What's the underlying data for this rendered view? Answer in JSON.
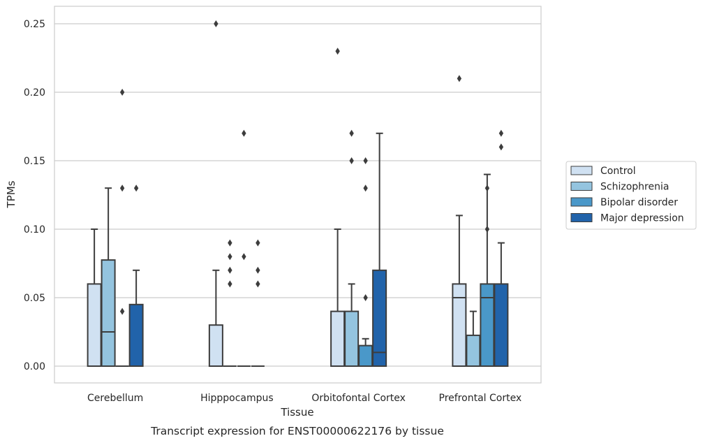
{
  "chart_data": {
    "type": "boxplot",
    "xlabel": "Tissue",
    "ylabel": "TPMs",
    "caption": "Transcript expression for ENST00000622176 by tissue",
    "ylim": [
      -0.012,
      0.263
    ],
    "yticks": [
      {
        "value": 0.0,
        "label": "0.00"
      },
      {
        "value": 0.05,
        "label": "0.05"
      },
      {
        "value": 0.1,
        "label": "0.10"
      },
      {
        "value": 0.15,
        "label": "0.15"
      },
      {
        "value": 0.2,
        "label": "0.20"
      },
      {
        "value": 0.25,
        "label": "0.25"
      }
    ],
    "grid": "horizontal",
    "legend_position": "right",
    "categories": [
      "Cerebellum",
      "Hipppocampus",
      "Orbitofontal Cortex",
      "Prefrontal Cortex"
    ],
    "series": [
      {
        "name": "Control",
        "color": "#d0e1f2",
        "boxes": [
          {
            "q1": 0.0,
            "median": 0.0,
            "q3": 0.06,
            "whisker_low": 0.0,
            "whisker_high": 0.1,
            "outliers": []
          },
          {
            "q1": 0.0,
            "median": 0.0,
            "q3": 0.03,
            "whisker_low": 0.0,
            "whisker_high": 0.07,
            "outliers": [
              0.25
            ]
          },
          {
            "q1": 0.0,
            "median": 0.0,
            "q3": 0.04,
            "whisker_low": 0.0,
            "whisker_high": 0.1,
            "outliers": [
              0.23
            ]
          },
          {
            "q1": 0.0,
            "median": 0.05,
            "q3": 0.06,
            "whisker_low": 0.0,
            "whisker_high": 0.11,
            "outliers": [
              0.21
            ]
          }
        ]
      },
      {
        "name": "Schizophrenia",
        "color": "#94c4df",
        "boxes": [
          {
            "q1": 0.0,
            "median": 0.025,
            "q3": 0.0775,
            "whisker_low": 0.0,
            "whisker_high": 0.13,
            "outliers": []
          },
          {
            "q1": 0.0,
            "median": 0.0,
            "q3": 0.0,
            "whisker_low": 0.0,
            "whisker_high": 0.0,
            "outliers": [
              0.06,
              0.07,
              0.08,
              0.09
            ]
          },
          {
            "q1": 0.0,
            "median": 0.0,
            "q3": 0.04,
            "whisker_low": 0.0,
            "whisker_high": 0.06,
            "outliers": [
              0.15,
              0.17
            ]
          },
          {
            "q1": 0.0,
            "median": 0.0,
            "q3": 0.0225,
            "whisker_low": 0.0,
            "whisker_high": 0.04,
            "outliers": []
          }
        ]
      },
      {
        "name": "Bipolar disorder",
        "color": "#4a98c9",
        "boxes": [
          {
            "q1": 0.0,
            "median": 0.0,
            "q3": 0.0,
            "whisker_low": 0.0,
            "whisker_high": 0.0,
            "outliers": [
              0.04,
              0.13,
              0.2
            ]
          },
          {
            "q1": 0.0,
            "median": 0.0,
            "q3": 0.0,
            "whisker_low": 0.0,
            "whisker_high": 0.0,
            "outliers": [
              0.08,
              0.17
            ]
          },
          {
            "q1": 0.0,
            "median": 0.0,
            "q3": 0.015,
            "whisker_low": 0.0,
            "whisker_high": 0.02,
            "outliers": [
              0.05,
              0.13,
              0.15
            ]
          },
          {
            "q1": 0.0,
            "median": 0.05,
            "q3": 0.06,
            "whisker_low": 0.0,
            "whisker_high": 0.14,
            "outliers": [
              0.1,
              0.13
            ]
          }
        ]
      },
      {
        "name": "Major depression",
        "color": "#2163aa",
        "boxes": [
          {
            "q1": 0.0,
            "median": 0.0,
            "q3": 0.045,
            "whisker_low": 0.0,
            "whisker_high": 0.07,
            "outliers": [
              0.13
            ]
          },
          {
            "q1": 0.0,
            "median": 0.0,
            "q3": 0.0,
            "whisker_low": 0.0,
            "whisker_high": 0.0,
            "outliers": [
              0.06,
              0.07,
              0.09
            ]
          },
          {
            "q1": 0.0,
            "median": 0.01,
            "q3": 0.07,
            "whisker_low": 0.0,
            "whisker_high": 0.17,
            "outliers": []
          },
          {
            "q1": 0.0,
            "median": 0.0,
            "q3": 0.06,
            "whisker_low": 0.0,
            "whisker_high": 0.09,
            "outliers": [
              0.16,
              0.17
            ]
          }
        ]
      }
    ]
  }
}
